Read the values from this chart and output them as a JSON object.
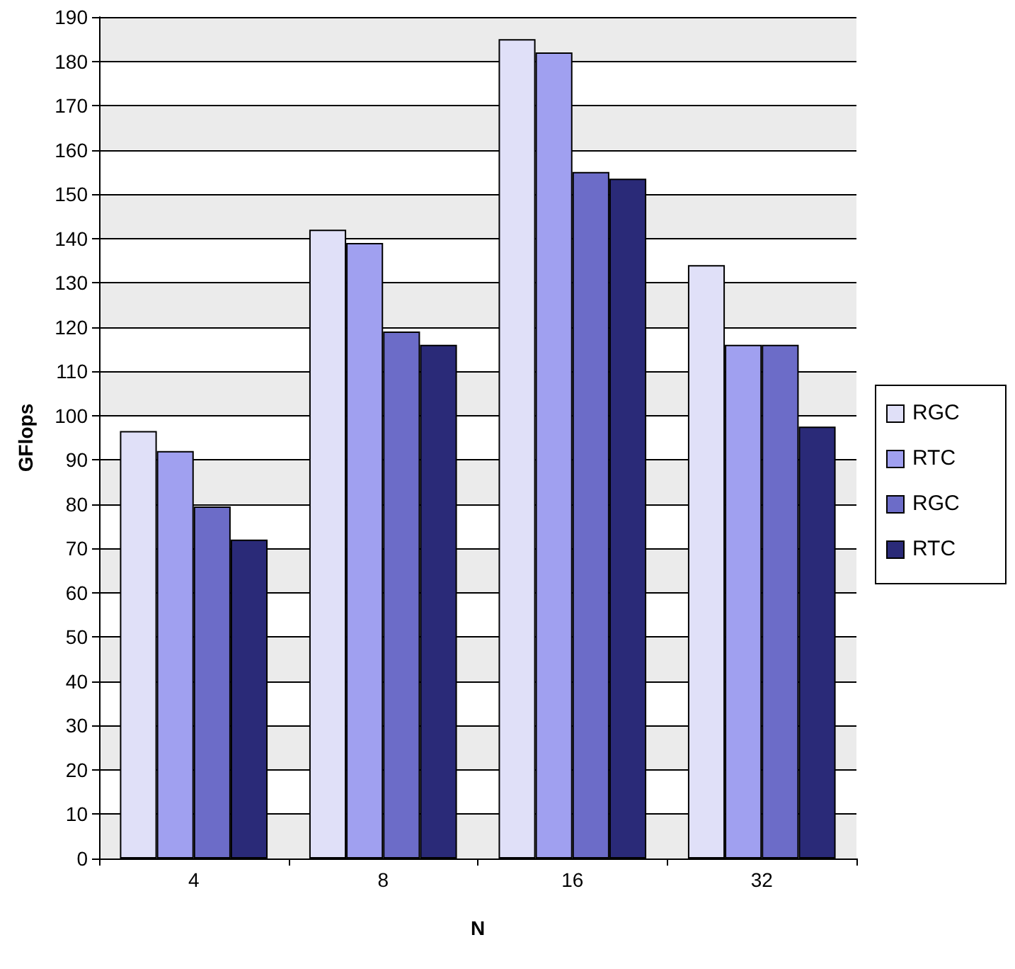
{
  "chart_data": {
    "type": "bar",
    "xlabel": "N",
    "ylabel": "GFlops",
    "categories": [
      "4",
      "8",
      "16",
      "32"
    ],
    "series": [
      {
        "name": "RGC",
        "color": "#e0e0f8",
        "values": [
          96.5,
          142,
          185,
          134
        ]
      },
      {
        "name": "RTC",
        "color": "#a0a0f0",
        "values": [
          92,
          139,
          182,
          116
        ]
      },
      {
        "name": "RGC",
        "color": "#6c6cc8",
        "values": [
          79.5,
          119,
          155,
          116
        ]
      },
      {
        "name": "RTC",
        "color": "#2a2a78",
        "values": [
          72,
          116,
          153.5,
          97.5
        ]
      }
    ],
    "ylim": [
      0,
      190
    ],
    "yticks": [
      0,
      10,
      20,
      30,
      40,
      50,
      60,
      70,
      80,
      90,
      100,
      110,
      120,
      130,
      140,
      150,
      160,
      170,
      180,
      190
    ],
    "grid": "y",
    "legend": "right"
  }
}
